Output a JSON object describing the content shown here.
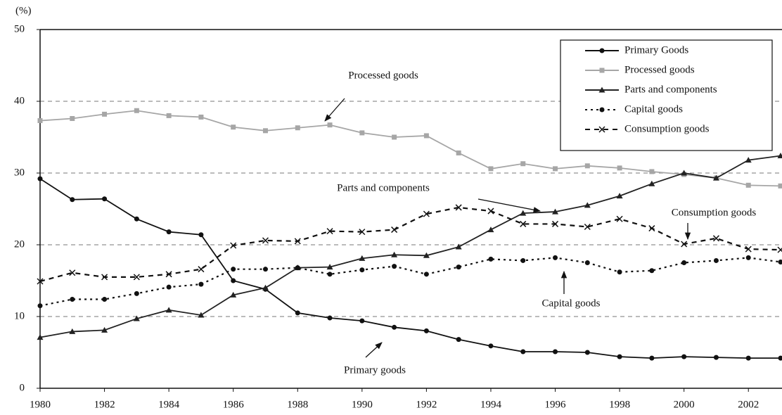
{
  "chart_data": {
    "type": "line",
    "y_unit": "(%)",
    "x": [
      1980,
      1981,
      1982,
      1983,
      1984,
      1985,
      1986,
      1987,
      1988,
      1989,
      1990,
      1991,
      1992,
      1993,
      1994,
      1995,
      1996,
      1997,
      1998,
      1999,
      2000,
      2001,
      2002,
      2003
    ],
    "series": [
      {
        "name": "Primary Goods",
        "color": "#111111",
        "values": [
          29.2,
          26.3,
          26.4,
          23.6,
          21.8,
          21.4,
          15.0,
          13.8,
          10.5,
          9.8,
          9.4,
          8.5,
          8.0,
          6.8,
          5.9,
          5.1,
          5.1,
          5.0,
          4.4,
          4.2,
          4.4,
          4.3,
          4.2,
          4.2
        ]
      },
      {
        "name": "Processed goods",
        "color": "#a6a6a6",
        "values": [
          37.3,
          37.6,
          38.2,
          38.7,
          38.0,
          37.8,
          36.4,
          35.9,
          36.3,
          36.7,
          35.6,
          35.0,
          35.2,
          32.8,
          30.6,
          31.3,
          30.6,
          31.0,
          30.7,
          30.2,
          29.8,
          29.3,
          28.3,
          28.2
        ]
      },
      {
        "name": "Parts and components",
        "color": "#222222",
        "values": [
          7.1,
          7.9,
          8.1,
          9.7,
          10.9,
          10.2,
          13.0,
          14.0,
          16.8,
          16.9,
          18.1,
          18.6,
          18.5,
          19.7,
          22.1,
          24.4,
          24.6,
          25.5,
          26.8,
          28.5,
          30.0,
          29.3,
          31.8,
          32.4
        ]
      },
      {
        "name": "Capital goods",
        "color": "#111111",
        "values": [
          11.5,
          12.4,
          12.4,
          13.2,
          14.1,
          14.5,
          16.6,
          16.6,
          16.8,
          15.9,
          16.5,
          17.0,
          15.9,
          16.9,
          18.0,
          17.8,
          18.2,
          17.5,
          16.2,
          16.4,
          17.5,
          17.8,
          18.2,
          17.6
        ]
      },
      {
        "name": "Consumption goods",
        "color": "#111111",
        "values": [
          14.9,
          16.1,
          15.5,
          15.5,
          15.9,
          16.6,
          19.9,
          20.6,
          20.5,
          21.9,
          21.8,
          22.1,
          24.3,
          25.2,
          24.7,
          22.9,
          22.9,
          22.5,
          23.6,
          22.3,
          20.1,
          20.9,
          19.4,
          19.3
        ]
      }
    ],
    "annotations": [
      "Processed goods",
      "Parts and components",
      "Consumption goods",
      "Capital goods",
      "Primary goods"
    ],
    "xlim": [
      1980,
      2003
    ],
    "xticks": [
      1980,
      1982,
      1984,
      1986,
      1988,
      1990,
      1992,
      1994,
      1996,
      1998,
      2000,
      2002
    ],
    "ylim": [
      0,
      50
    ],
    "yticks": [
      0,
      10,
      20,
      30,
      40,
      50
    ],
    "grid": true,
    "legend": "upper right"
  }
}
